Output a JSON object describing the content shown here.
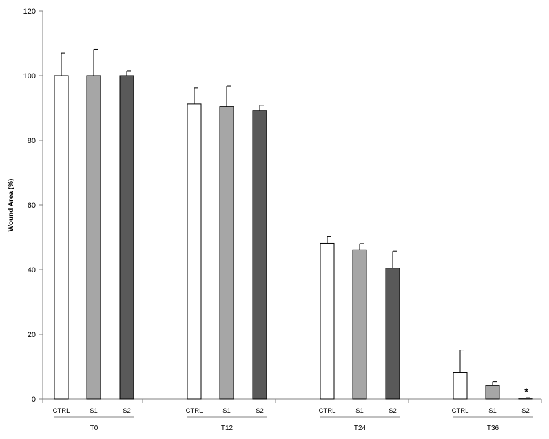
{
  "chart_data": {
    "type": "bar",
    "title": "",
    "xlabel": "",
    "ylabel": "Wound Area (%)",
    "ylim": [
      0,
      120
    ],
    "yticks": [
      0,
      20,
      40,
      60,
      80,
      100,
      120
    ],
    "grid": false,
    "legend": "none",
    "groups": [
      {
        "label": "T0",
        "bars": [
          {
            "label": "CTRL",
            "value": 100,
            "error": 7
          },
          {
            "label": "S1",
            "value": 100,
            "error": 8.2
          },
          {
            "label": "S2",
            "value": 100,
            "error": 1.5
          }
        ]
      },
      {
        "label": "T12",
        "bars": [
          {
            "label": "CTRL",
            "value": 91.3,
            "error": 4.9
          },
          {
            "label": "S1",
            "value": 90.5,
            "error": 6.3
          },
          {
            "label": "S2",
            "value": 89.2,
            "error": 1.7
          }
        ]
      },
      {
        "label": "T24",
        "bars": [
          {
            "label": "CTRL",
            "value": 48.2,
            "error": 2.1
          },
          {
            "label": "S1",
            "value": 46.1,
            "error": 2.0
          },
          {
            "label": "S2",
            "value": 40.5,
            "error": 5.2
          }
        ]
      },
      {
        "label": "T36",
        "bars": [
          {
            "label": "CTRL",
            "value": 8.2,
            "error": 7.0
          },
          {
            "label": "S1",
            "value": 4.2,
            "error": 1.2
          },
          {
            "label": "S2",
            "value": 0.3,
            "error": 0.1,
            "annotation": "*"
          }
        ]
      }
    ],
    "colors": {
      "CTRL": "#ffffff",
      "S1": "#a6a6a6",
      "S2": "#595959",
      "outline": "#000000"
    }
  }
}
